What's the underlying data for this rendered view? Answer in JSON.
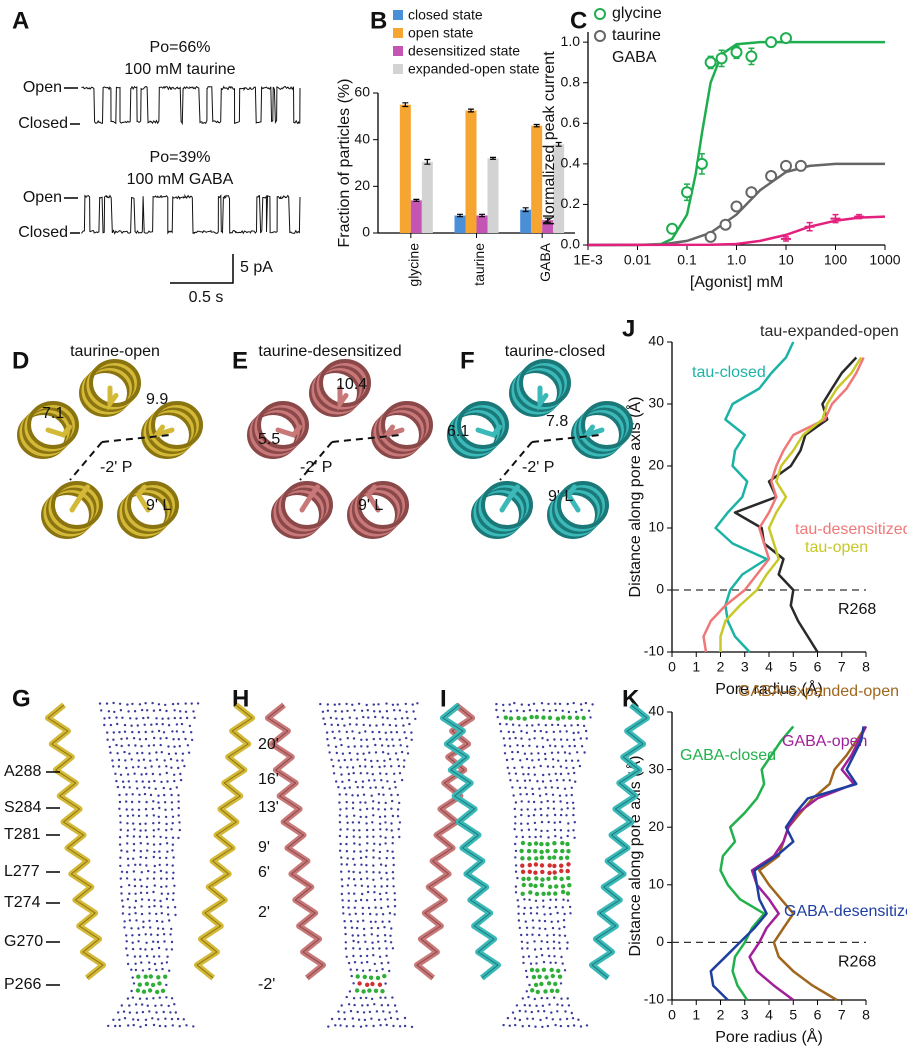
{
  "figure": {
    "panel_labels": [
      "A",
      "B",
      "C",
      "D",
      "E",
      "F",
      "G",
      "H",
      "I",
      "J",
      "K"
    ],
    "trace_a": {
      "top_po": "Po=66%",
      "top_agonist": "100 mM taurine",
      "bottom_po": "Po=39%",
      "bottom_agonist": "100 mM GABA",
      "open": "Open",
      "closed": "Closed",
      "scale_current": "5 pA",
      "scale_time": "0.5 s"
    },
    "structures": [
      {
        "title": "taurine-open",
        "distances": [
          "7.1",
          "9.9"
        ],
        "residues": [
          "-2' P",
          "9' L"
        ]
      },
      {
        "title": "taurine-desensitized",
        "distances": [
          "5.5",
          "10.4"
        ],
        "residues": [
          "-2' P",
          "9' L"
        ]
      },
      {
        "title": "taurine-closed",
        "distances": [
          "6.1",
          "7.8"
        ],
        "residues": [
          "-2' P",
          "9' L"
        ]
      }
    ],
    "pore_labels": {
      "residues": [
        "A288",
        "S284",
        "T281",
        "L277",
        "T274",
        "G270",
        "P266"
      ],
      "positions": [
        "20'",
        "16'",
        "13'",
        "9'",
        "6'",
        "2'",
        "-2'"
      ]
    }
  },
  "chart_data": [
    {
      "type": "bar",
      "y_label": "Fraction of particles (%)",
      "categories": [
        "glycine",
        "taurine",
        "GABA"
      ],
      "ylim": [
        0,
        60
      ],
      "yticks": [
        0,
        20,
        40,
        60
      ],
      "series": [
        {
          "name": "closed state",
          "color": "#4a90d9",
          "values": [
            null,
            7.5,
            10
          ],
          "errors": [
            null,
            0.5,
            0.8
          ]
        },
        {
          "name": "open state",
          "color": "#f7a531",
          "values": [
            55,
            52.5,
            46
          ],
          "errors": [
            0.8,
            0.6,
            0.5
          ]
        },
        {
          "name": "desensitized state",
          "color": "#c455b4",
          "values": [
            14,
            7.5,
            5.5
          ],
          "errors": [
            0.4,
            0.5,
            0.9
          ]
        },
        {
          "name": "expanded-open state",
          "color": "#d3d3d3",
          "values": [
            30.5,
            32,
            38
          ],
          "errors": [
            1,
            0.4,
            0.8
          ]
        }
      ]
    },
    {
      "type": "dose",
      "x_label": "[Agonist] mM",
      "y_label": "Normalized peak current",
      "x_scale": "log",
      "xlim": [
        0.001,
        1000
      ],
      "xticks": [
        {
          "value": 0.001,
          "label": "1E-3"
        },
        0.01,
        0.1,
        {
          "value": 1,
          "label": "1.0"
        },
        10,
        100,
        1000
      ],
      "ylim": [
        0,
        1.05
      ],
      "yticks": [
        {
          "value": 0,
          "label": "0.0"
        },
        0.2,
        0.4,
        0.6,
        0.8,
        {
          "value": 1,
          "label": "1.0"
        }
      ],
      "series": [
        {
          "name": "glycine",
          "color": "#1fae4f",
          "marker": "circle",
          "x": [
            0.05,
            0.1,
            0.2,
            0.3,
            0.5,
            1,
            2,
            5,
            10
          ],
          "values": [
            0.08,
            0.26,
            0.4,
            0.9,
            0.92,
            0.95,
            0.93,
            1.0,
            1.02
          ],
          "errors": [
            0.01,
            0.04,
            0.05,
            0.03,
            0.04,
            0.03,
            0.04,
            0.02,
            0.02
          ],
          "fit_x": [
            0.001,
            0.01,
            0.03,
            0.05,
            0.1,
            0.15,
            0.2,
            0.3,
            0.5,
            1,
            3,
            1000
          ],
          "fit_values": [
            0,
            0,
            0.005,
            0.03,
            0.15,
            0.35,
            0.55,
            0.8,
            0.94,
            0.99,
            1.0,
            1.0
          ]
        },
        {
          "name": "taurine",
          "color": "#666666",
          "marker": "circle",
          "x": [
            0.3,
            0.6,
            1,
            2,
            5,
            10,
            20
          ],
          "values": [
            0.04,
            0.1,
            0.19,
            0.26,
            0.34,
            0.39,
            0.39
          ],
          "errors": [
            0.01,
            0.01,
            0.01,
            0.01,
            0.01,
            0.01,
            0.01
          ],
          "fit_x": [
            0.001,
            0.03,
            0.1,
            0.3,
            1,
            3,
            10,
            30,
            100,
            1000
          ],
          "fit_values": [
            0,
            0.002,
            0.02,
            0.06,
            0.15,
            0.27,
            0.36,
            0.39,
            0.4,
            0.4
          ]
        },
        {
          "name": "GABA",
          "color": "#e3207d",
          "marker": "plus",
          "x": [
            10,
            30,
            100,
            300
          ],
          "values": [
            0.03,
            0.09,
            0.13,
            0.14
          ],
          "errors": [
            0.01,
            0.02,
            0.02,
            0.01
          ],
          "fit_x": [
            0.001,
            0.3,
            1,
            3,
            10,
            30,
            100,
            300,
            1000
          ],
          "fit_values": [
            0,
            0.001,
            0.005,
            0.02,
            0.05,
            0.09,
            0.12,
            0.135,
            0.14
          ]
        }
      ]
    },
    {
      "type": "profile",
      "x_label": "Pore radius (Å)",
      "y_label": "Distance along pore axis (Å)",
      "xlim": [
        0,
        8
      ],
      "xticks": [
        0,
        1,
        2,
        3,
        4,
        5,
        6,
        7,
        8
      ],
      "ylim": [
        -10,
        40
      ],
      "yticks": [
        -10,
        0,
        10,
        20,
        30,
        40
      ],
      "reference_line": 0,
      "reference_label": "R268",
      "series": [
        {
          "name": "tau-closed",
          "color": "#1cb3a6",
          "x": [
            3.2,
            2.6,
            2.3,
            2.2,
            2.4,
            2.9,
            3.9,
            2.5,
            1.8,
            2.3,
            2.9,
            3.1,
            2.5,
            2.6,
            3.0,
            2.2,
            2.5,
            3.6,
            4.1,
            4.7,
            5.0
          ],
          "values": [
            -10,
            -7.5,
            -5,
            -2.5,
            0,
            2.5,
            5,
            7.5,
            10,
            12.5,
            15,
            17.5,
            20,
            22.5,
            25,
            27.5,
            30,
            32.5,
            35,
            37.5,
            40
          ]
        },
        {
          "name": "tau-expanded-open",
          "color": "#2a2a2a",
          "x": [
            6.0,
            5.6,
            5.2,
            4.9,
            5.0,
            4.4,
            4.6,
            3.8,
            3.7,
            2.6,
            4.3,
            4.0,
            4.9,
            5.3,
            5.5,
            6.4,
            6.2,
            6.6,
            7.0,
            7.6
          ],
          "values": [
            -10,
            -7.5,
            -5,
            -2.5,
            0,
            2.5,
            5,
            7.5,
            10,
            12.5,
            15,
            17.5,
            20,
            22.5,
            25,
            27.5,
            30,
            32.5,
            35,
            37.5
          ]
        },
        {
          "name": "tau-desensitized",
          "color": "#f07878",
          "x": [
            1.4,
            1.3,
            1.6,
            2.2,
            3.0,
            3.5,
            4.0,
            3.8,
            3.6,
            4.0,
            4.3,
            4.1,
            4.3,
            4.6,
            5.0,
            6.3,
            6.6,
            7.2,
            7.6,
            7.9
          ],
          "values": [
            -10,
            -7.5,
            -5,
            -2.5,
            0,
            2.5,
            5,
            7.5,
            10,
            12.5,
            15,
            17.5,
            20,
            22.5,
            25,
            27.5,
            30,
            32.5,
            35,
            37.5
          ]
        },
        {
          "name": "tau-open",
          "color": "#c8c828",
          "x": [
            2.0,
            2.0,
            2.2,
            2.8,
            3.5,
            3.9,
            4.4,
            4.2,
            4.0,
            4.3,
            4.7,
            4.3,
            4.5,
            5.0,
            5.4,
            6.2,
            6.4,
            6.8,
            7.4,
            7.8
          ],
          "values": [
            -10,
            -7.5,
            -5,
            -2.5,
            0,
            2.5,
            5,
            7.5,
            10,
            12.5,
            15,
            17.5,
            20,
            22.5,
            25,
            27.5,
            30,
            32.5,
            35,
            37.5
          ]
        }
      ]
    },
    {
      "type": "profile",
      "x_label": "Pore radius (Å)",
      "y_label": "Distance along pore axis (Å)",
      "xlim": [
        0,
        8
      ],
      "xticks": [
        0,
        1,
        2,
        3,
        4,
        5,
        6,
        7,
        8
      ],
      "ylim": [
        -10,
        40
      ],
      "yticks": [
        -10,
        0,
        10,
        20,
        30,
        40
      ],
      "reference_line": 0,
      "reference_label": "R268",
      "series": [
        {
          "name": "GABA-closed",
          "color": "#22b14c",
          "x": [
            3.1,
            2.7,
            2.5,
            2.6,
            3.0,
            3.3,
            3.8,
            2.8,
            2.3,
            2.0,
            2.1,
            2.6,
            2.4,
            3.0,
            3.5,
            3.8,
            3.7,
            4.1,
            4.5,
            5.0
          ],
          "values": [
            -10,
            -7.5,
            -5,
            -2.5,
            0,
            2.5,
            5,
            7.5,
            10,
            12.5,
            15,
            17.5,
            20,
            22.5,
            25,
            27.5,
            30,
            32.5,
            35,
            37.5
          ]
        },
        {
          "name": "GABA-expanded-open",
          "color": "#a0661e",
          "x": [
            6.8,
            5.8,
            5.0,
            4.4,
            4.2,
            4.6,
            5.0,
            4.5,
            4.0,
            3.6,
            4.4,
            4.6,
            4.8,
            5.3,
            5.8,
            6.5,
            6.7,
            7.2,
            7.6,
            8.0
          ],
          "values": [
            -10,
            -7.5,
            -5,
            -2.5,
            0,
            2.5,
            5,
            7.5,
            10,
            12.5,
            15,
            17.5,
            20,
            22.5,
            25,
            27.5,
            30,
            32.5,
            35,
            37.5
          ]
        },
        {
          "name": "GABA-open",
          "color": "#a0209a",
          "x": [
            5.0,
            4.2,
            3.5,
            3.2,
            3.6,
            3.9,
            4.4,
            4.0,
            3.5,
            3.3,
            4.2,
            4.6,
            4.8,
            5.2,
            6.0,
            7.5,
            7.0,
            7.4,
            7.7,
            8.0
          ],
          "values": [
            -10,
            -7.5,
            -5,
            -2.5,
            0,
            2.5,
            5,
            7.5,
            10,
            12.5,
            15,
            17.5,
            20,
            22.5,
            25,
            27.5,
            30,
            32.5,
            35,
            37.5
          ]
        },
        {
          "name": "GABA-desensitized",
          "color": "#1f3fa0",
          "x": [
            2.3,
            1.7,
            1.6,
            2.2,
            2.8,
            3.4,
            3.9,
            3.6,
            3.5,
            3.4,
            4.3,
            5.0,
            4.7,
            5.1,
            5.6,
            7.6,
            7.2,
            7.5,
            7.8,
            7.9
          ],
          "values": [
            -10,
            -7.5,
            -5,
            -2.5,
            0,
            2.5,
            5,
            7.5,
            10,
            12.5,
            15,
            17.5,
            20,
            22.5,
            25,
            27.5,
            30,
            32.5,
            35,
            37.5
          ]
        }
      ]
    }
  ]
}
